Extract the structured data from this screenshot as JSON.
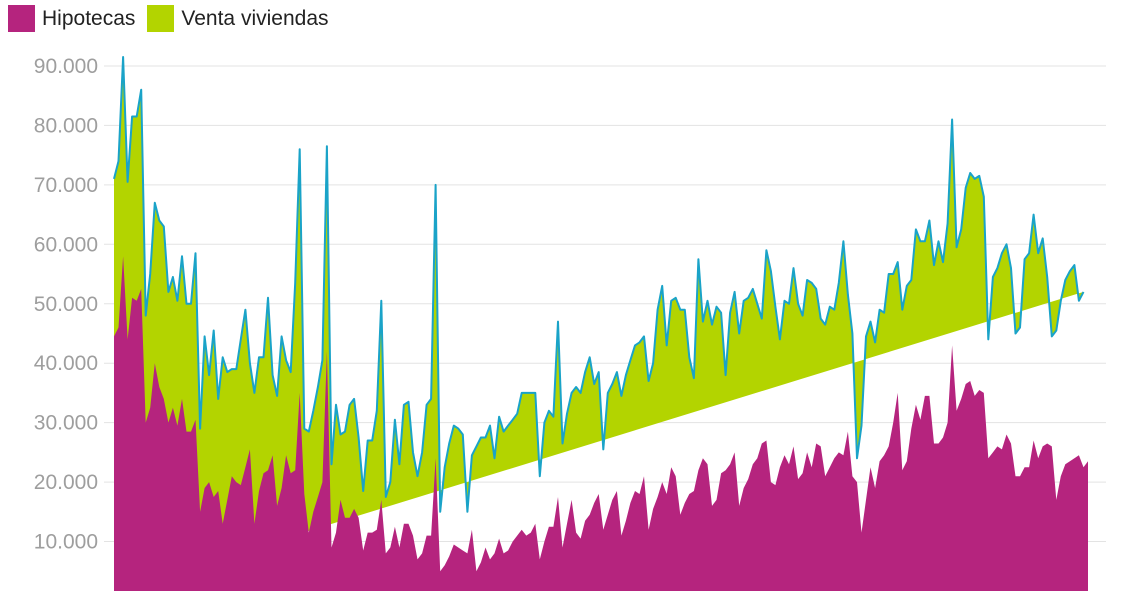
{
  "chart_data": {
    "type": "area",
    "stacked": true,
    "title": "",
    "xlabel": "",
    "ylabel": "",
    "ylim": [
      0,
      92000
    ],
    "yticks": [
      10000,
      20000,
      30000,
      40000,
      50000,
      60000,
      70000,
      80000,
      90000
    ],
    "ytick_labels": [
      "10.000",
      "20.000",
      "30.000",
      "40.000",
      "50.000",
      "60.000",
      "70.000",
      "80.000",
      "90.000"
    ],
    "grid": true,
    "legend_position": "top-left",
    "series": [
      {
        "name": "Hipotecas",
        "color": "#b5247e",
        "values": [
          44500,
          46000,
          58000,
          44000,
          51000,
          50500,
          52500,
          30000,
          32500,
          40000,
          36000,
          34000,
          30000,
          32500,
          29500,
          34000,
          28500,
          28500,
          30500,
          15000,
          19000,
          20000,
          17500,
          18500,
          13000,
          17000,
          21000,
          20000,
          19500,
          22500,
          25500,
          13000,
          18500,
          21500,
          22000,
          24500,
          16000,
          19000,
          24500,
          21500,
          22000,
          35000,
          18000,
          11500,
          15000,
          17500,
          20000,
          42000,
          9000,
          11500,
          17000,
          14000,
          14000,
          15500,
          14000,
          8500,
          11500,
          11500,
          12000,
          17000,
          8000,
          9000,
          12500,
          9000,
          13000,
          13000,
          11000,
          7000,
          8000,
          11000,
          11000,
          24000,
          5000,
          6000,
          7500,
          9500,
          9000,
          8500,
          8000,
          12000,
          5000,
          6500,
          9000,
          7000,
          8000,
          10500,
          8000,
          8500,
          10000,
          11000,
          12000,
          11000,
          11500,
          13000,
          7000,
          10000,
          12500,
          12500,
          17500,
          9000,
          13000,
          17000,
          11500,
          10500,
          13500,
          14500,
          16500,
          18000,
          12000,
          14500,
          17000,
          18500,
          11000,
          13500,
          16500,
          18500,
          18000,
          21000,
          12000,
          15500,
          17500,
          20000,
          18000,
          22500,
          21000,
          14500,
          16500,
          18000,
          18500,
          22000,
          24000,
          23000,
          16000,
          17000,
          21500,
          22000,
          23000,
          25000,
          16000,
          19000,
          20500,
          23000,
          24000,
          26500,
          27000,
          20000,
          19500,
          22500,
          24500,
          23000,
          26000,
          20500,
          21500,
          25000,
          22500,
          26500,
          26000,
          21000,
          22500,
          24000,
          25000,
          24500,
          28500,
          21000,
          20000,
          11500,
          17000,
          22500,
          19000,
          23500,
          24500,
          26000,
          30000,
          35000,
          22000,
          23500,
          29000,
          33000,
          30500,
          34500,
          34500,
          26500,
          26500,
          27500,
          30000,
          43000,
          32000,
          34000,
          36500,
          37000,
          34500,
          35500,
          35000,
          24000,
          25000,
          26000,
          25500,
          28000,
          26500,
          21000,
          21000,
          22500,
          22500,
          27000,
          24000,
          26000,
          26500,
          26000,
          17000,
          21000,
          23000,
          23500,
          24000,
          24500,
          22500,
          23500
        ]
      },
      {
        "name": "Venta viviendas",
        "color": "#b3d400",
        "values": [
          26500,
          28000,
          33500,
          26500,
          30500,
          31000,
          33500,
          18000,
          22500,
          27000,
          28000,
          29000,
          22000,
          22000,
          21000,
          24000,
          21500,
          21500,
          28000,
          14000,
          25500,
          18000,
          28000,
          15500,
          28000,
          21500,
          18000,
          19000,
          24500,
          26500,
          14500,
          22000,
          22500,
          19500,
          29000,
          13500,
          18500,
          25500,
          16000,
          17000,
          31500,
          41000,
          11000,
          17000,
          17000,
          18500,
          20500,
          34500,
          14000,
          21500,
          11000,
          14500,
          19000,
          18500,
          13500,
          10000,
          15500,
          15500,
          20000,
          33500,
          9500,
          11000,
          18000,
          14000,
          20000,
          20500,
          14000,
          14000,
          17000,
          22000,
          23000,
          46000,
          10000,
          16500,
          19000,
          20000,
          20000,
          19500,
          7000,
          12500,
          21000,
          21000,
          18500,
          22500,
          16000,
          20500,
          20500,
          21000,
          20500,
          20500,
          23000,
          24000,
          23500,
          22000,
          14000,
          20000,
          19500,
          18500,
          29500,
          17500,
          18500,
          18000,
          24500,
          24500,
          25000,
          26500,
          20000,
          20500,
          13500,
          20500,
          19500,
          20000,
          23500,
          24500,
          24000,
          24500,
          25500,
          23500,
          25000,
          24500,
          31500,
          33000,
          25000,
          28000,
          30000,
          34500,
          32500,
          23000,
          19000,
          35500,
          23000,
          27500,
          30500,
          32500,
          27000,
          16000,
          25500,
          27000,
          29000,
          31500,
          30500,
          29500,
          26000,
          21000,
          32000,
          35500,
          30000,
          21500,
          26000,
          27000,
          30000,
          29500,
          26500,
          29000,
          31000,
          26000,
          21500,
          25500,
          27000,
          25000,
          28500,
          36000,
          23000,
          24000,
          4000,
          18000,
          27500,
          24500,
          24500,
          25500,
          24000,
          29000,
          25000,
          22000,
          27000,
          29500,
          25000,
          29500,
          30000,
          26000,
          29500,
          30000,
          34000,
          29500,
          33500,
          38000,
          27500,
          28500,
          33000,
          35000,
          36500,
          36000,
          33000,
          20000,
          29500,
          30000,
          33000,
          32000,
          29500,
          24000,
          25000,
          35000,
          36000,
          38000,
          34500,
          35000,
          28000,
          18500,
          28500,
          29500,
          31000,
          32000,
          32500,
          26000,
          29500
        ]
      }
    ]
  }
}
